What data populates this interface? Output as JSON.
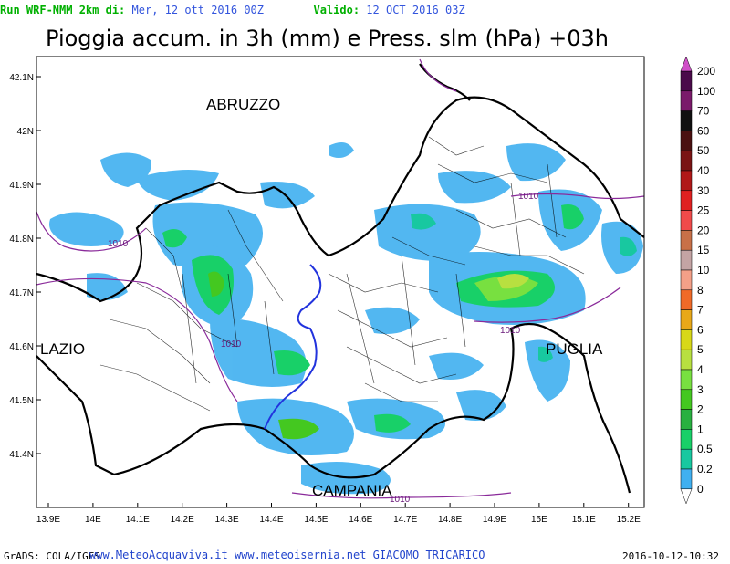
{
  "header": {
    "run_label": "Run WRF-NMM 2km di:",
    "run_value": "Mer, 12 ott 2016 00Z",
    "valid_label": "Valido:",
    "valid_value": "12 OCT 2016 03Z"
  },
  "title": "Pioggia accum. in 3h (mm) e Press. slm (hPa) +03h",
  "map": {
    "lon_labels": [
      "13.9E",
      "14E",
      "14.1E",
      "14.2E",
      "14.3E",
      "14.4E",
      "14.5E",
      "14.6E",
      "14.7E",
      "14.8E",
      "14.9E",
      "15E",
      "15.1E",
      "15.2E"
    ],
    "lat_labels": [
      "42.1N",
      "42N",
      "41.9N",
      "41.8N",
      "41.7N",
      "41.6N",
      "41.5N",
      "41.4N"
    ],
    "region_labels": {
      "abruzzo": "ABRUZZO",
      "lazio": "LAZIO",
      "puglia": "PUGLIA",
      "campania": "CAMPANIA"
    },
    "isobar_labels": [
      "1010",
      "1010",
      "1010",
      "1010",
      "1010"
    ]
  },
  "legend": {
    "values": [
      "200",
      "100",
      "70",
      "60",
      "50",
      "40",
      "30",
      "25",
      "20",
      "15",
      "10",
      "8",
      "7",
      "6",
      "5",
      "4",
      "3",
      "2",
      "1",
      "0.5",
      "0.2",
      "0"
    ],
    "colors": [
      "#4a0a4a",
      "#7a1a6a",
      "#101010",
      "#4a1010",
      "#7a1414",
      "#b01818",
      "#e02020",
      "#f04a4a",
      "#c87048",
      "#c4a4a4",
      "#f4a088",
      "#f06a28",
      "#e8a818",
      "#d8d818",
      "#b8e040",
      "#78e040",
      "#44c820",
      "#28b040",
      "#18d068",
      "#18c8a0",
      "#40b0f0",
      "#ffffff"
    ]
  },
  "footer": {
    "grads": "GrADS: COLA/IGES",
    "sites": "www.MeteoAcquaviva.it www.meteoisernia.net GIACOMO TRICARICO",
    "timestamp": "2016-10-12-10:32"
  }
}
